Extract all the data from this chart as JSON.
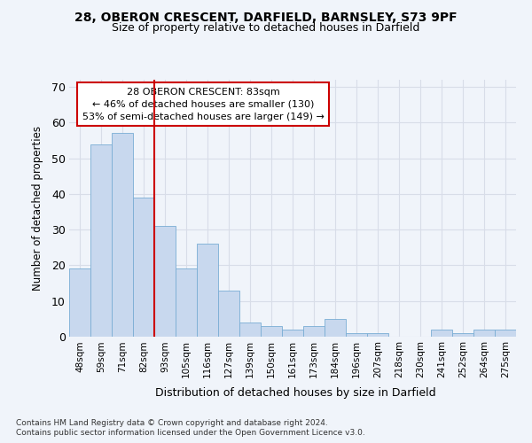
{
  "title1": "28, OBERON CRESCENT, DARFIELD, BARNSLEY, S73 9PF",
  "title2": "Size of property relative to detached houses in Darfield",
  "xlabel": "Distribution of detached houses by size in Darfield",
  "ylabel": "Number of detached properties",
  "categories": [
    "48sqm",
    "59sqm",
    "71sqm",
    "82sqm",
    "93sqm",
    "105sqm",
    "116sqm",
    "127sqm",
    "139sqm",
    "150sqm",
    "161sqm",
    "173sqm",
    "184sqm",
    "196sqm",
    "207sqm",
    "218sqm",
    "230sqm",
    "241sqm",
    "252sqm",
    "264sqm",
    "275sqm"
  ],
  "values": [
    19,
    54,
    57,
    39,
    31,
    19,
    26,
    13,
    4,
    3,
    2,
    3,
    5,
    1,
    1,
    0,
    0,
    2,
    1,
    2,
    2
  ],
  "bar_color": "#c8d8ee",
  "bar_edge_color": "#7aadd4",
  "highlight_line_color": "#cc0000",
  "annotation_text": "28 OBERON CRESCENT: 83sqm\n← 46% of detached houses are smaller (130)\n53% of semi-detached houses are larger (149) →",
  "annotation_box_color": "#ffffff",
  "annotation_box_edge": "#cc0000",
  "ylim": [
    0,
    72
  ],
  "yticks": [
    0,
    10,
    20,
    30,
    40,
    50,
    60,
    70
  ],
  "footnote1": "Contains HM Land Registry data © Crown copyright and database right 2024.",
  "footnote2": "Contains public sector information licensed under the Open Government Licence v3.0.",
  "bg_color": "#f0f4fa",
  "plot_bg_color": "#f0f4fa",
  "grid_color": "#d8dde8"
}
